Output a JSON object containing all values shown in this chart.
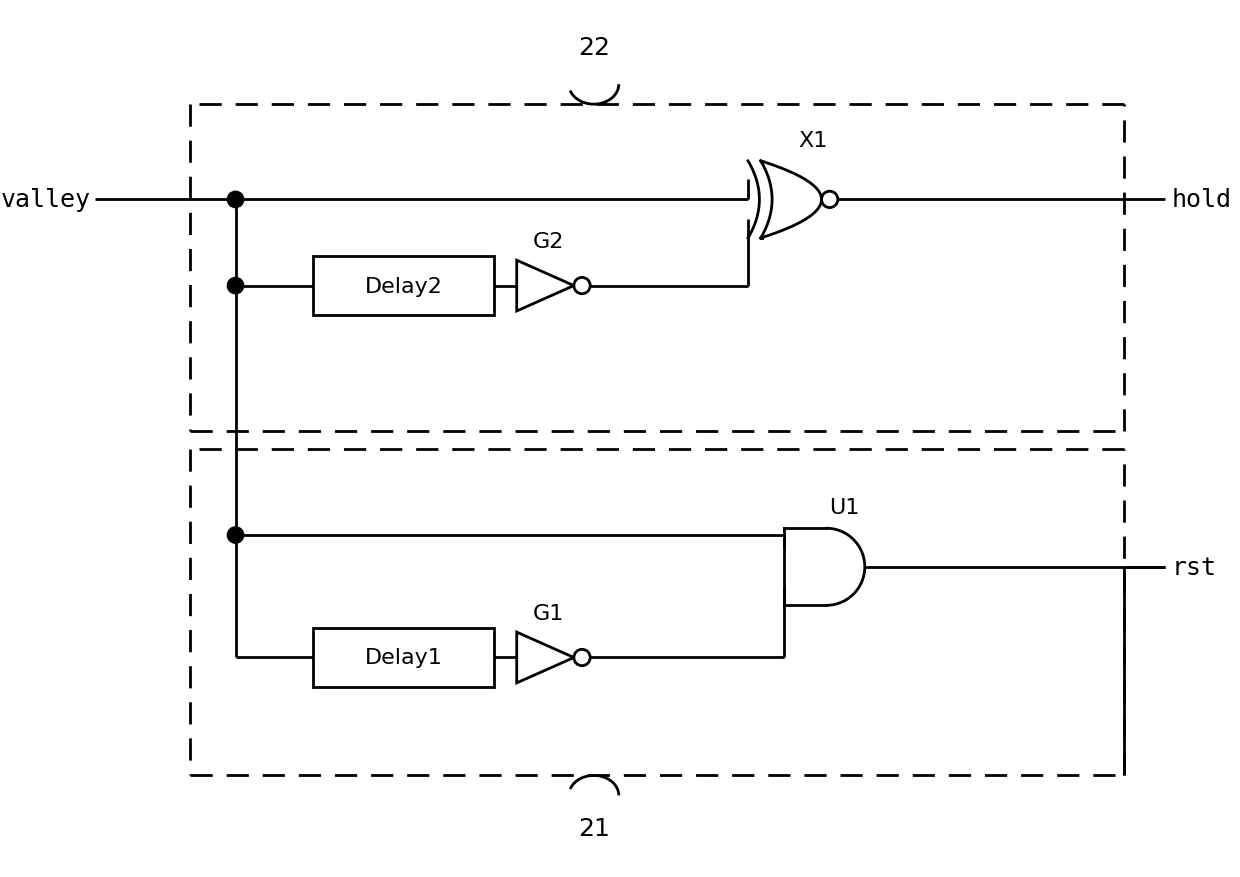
{
  "bg_color": "#ffffff",
  "line_color": "#000000",
  "line_width": 2.0,
  "labels": {
    "valley": "valley",
    "hold": "hold",
    "rst": "rst",
    "X1": "X1",
    "U1": "U1",
    "G1": "G1",
    "G2": "G2",
    "Delay1": "Delay1",
    "Delay2": "Delay2",
    "box22": "22",
    "box21": "21"
  },
  "font_size": 16,
  "label_font_size": 18
}
